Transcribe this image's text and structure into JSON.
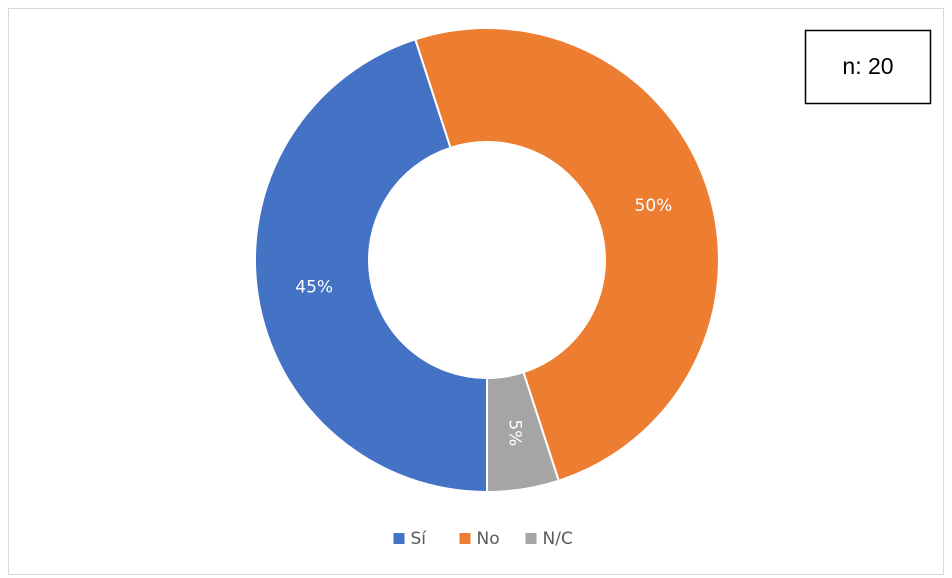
{
  "chart_data": {
    "type": "donut",
    "categories": [
      "Sí",
      "No",
      "N/C"
    ],
    "values": [
      45,
      50,
      5
    ],
    "value_labels": [
      "45%",
      "50%",
      "5%"
    ],
    "colors": [
      "#4472c4",
      "#ed7d31",
      "#a5a5a5"
    ],
    "annotation": "n: 20",
    "legend": "bottom"
  }
}
